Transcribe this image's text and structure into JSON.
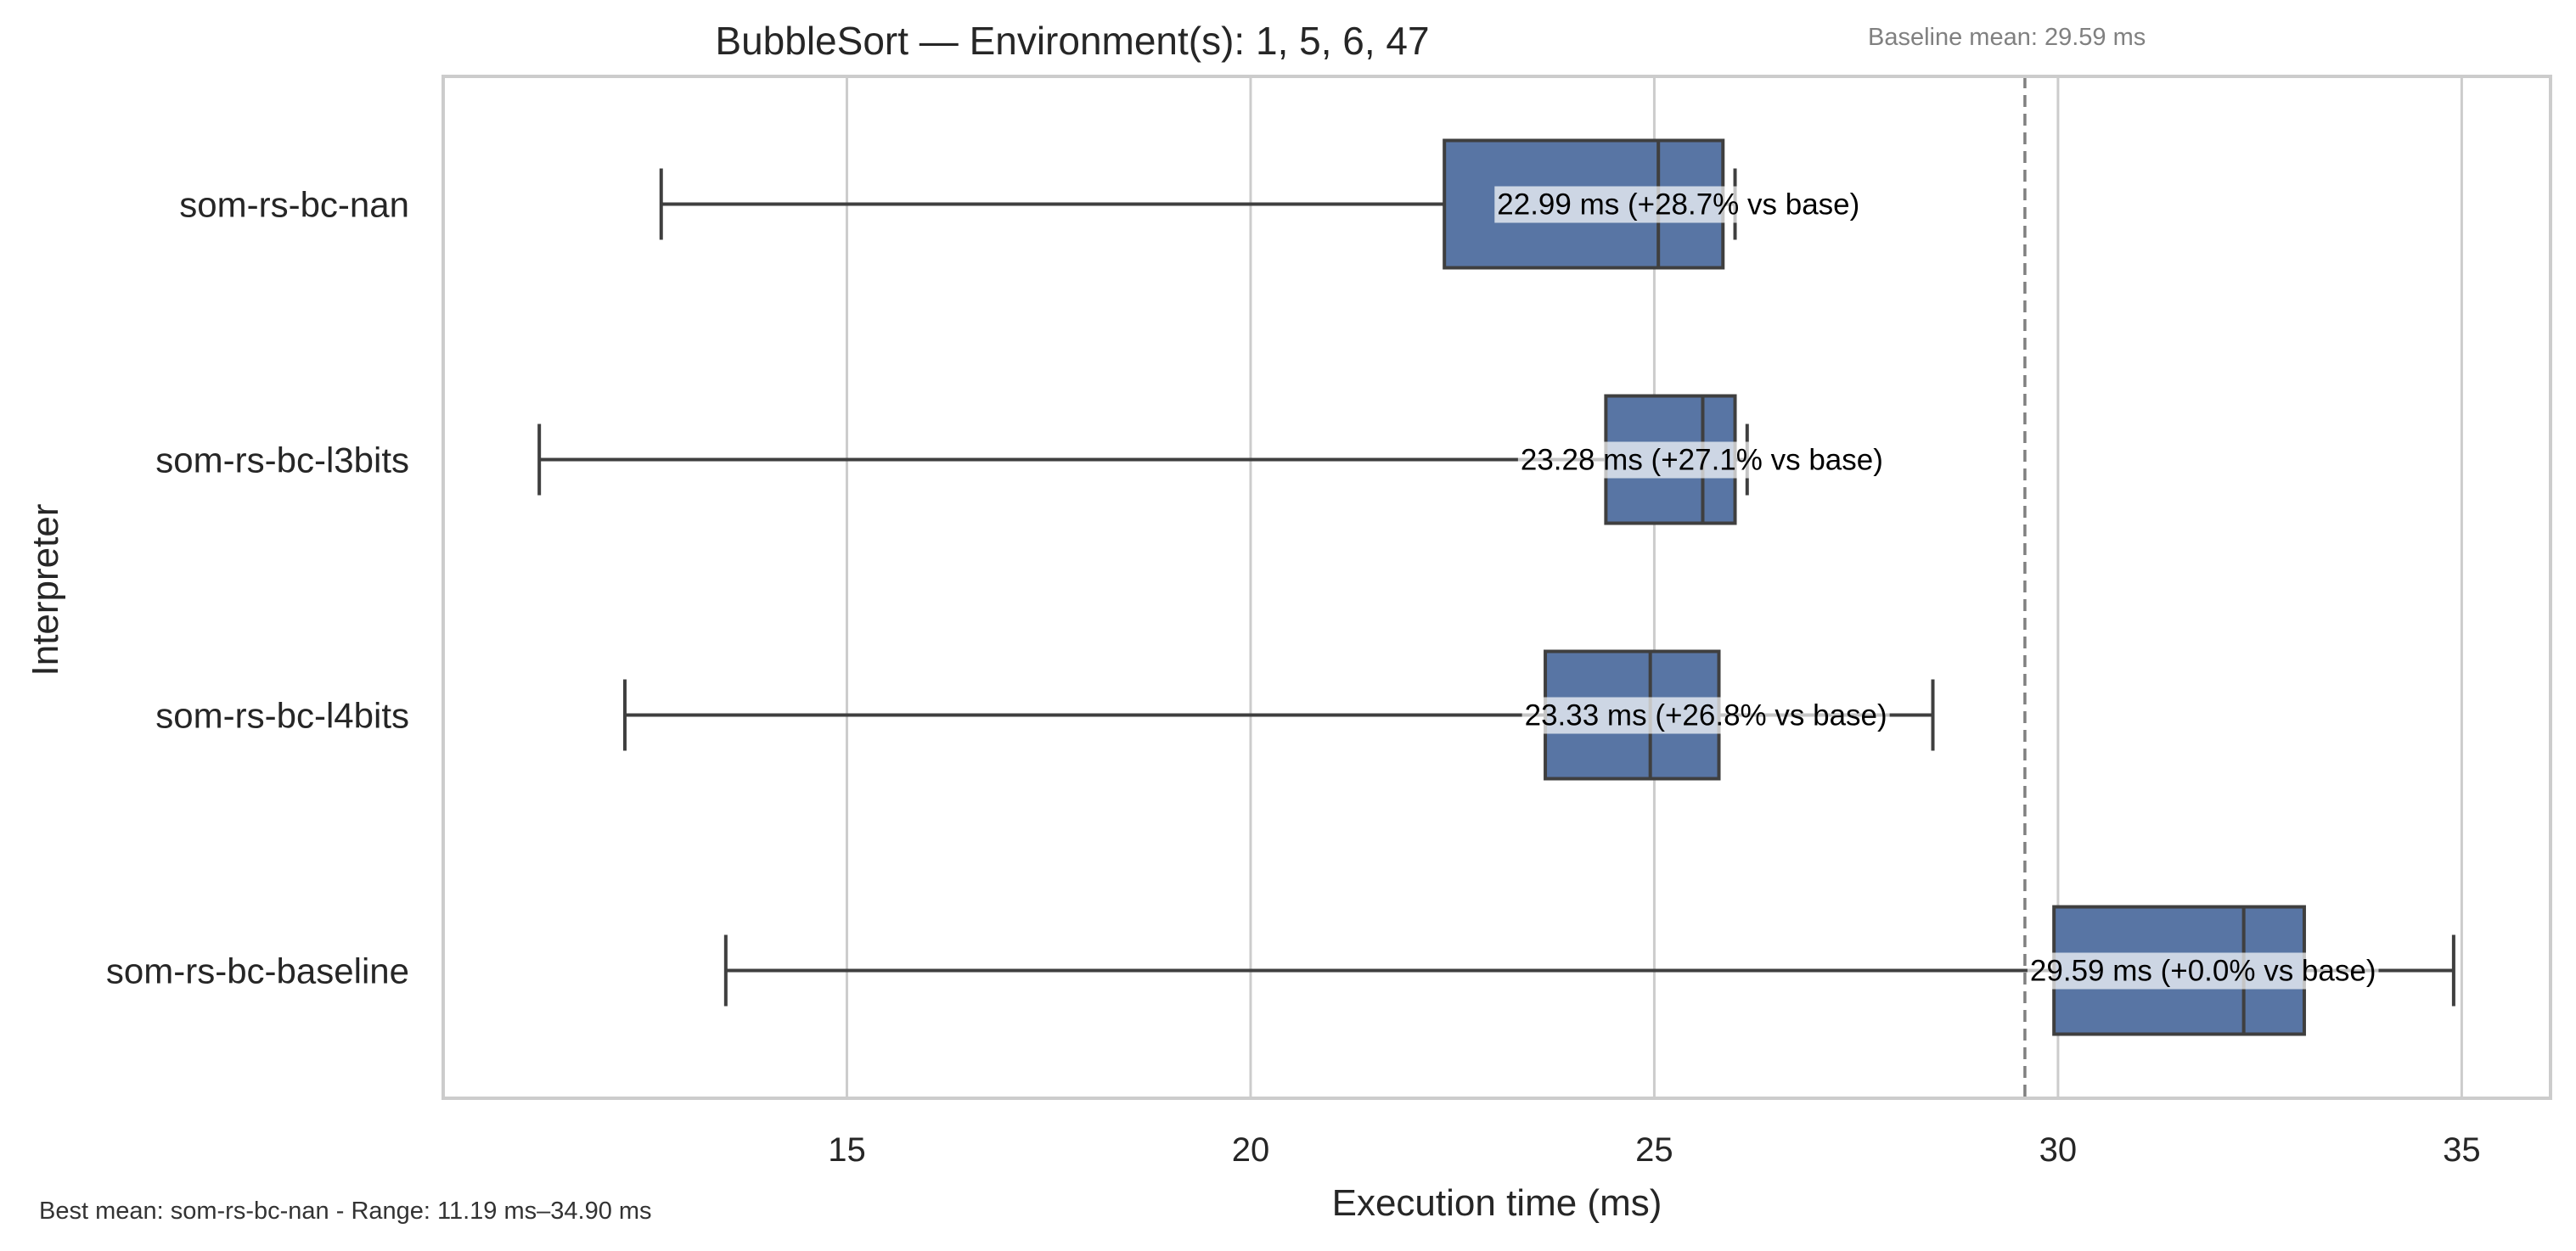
{
  "chart_data": {
    "type": "box",
    "orientation": "horizontal",
    "title": "BubbleSort — Environment(s): 1, 5, 6, 47",
    "xlabel": "Execution time (ms)",
    "ylabel": "Interpreter",
    "xlim": [
      10,
      36.1
    ],
    "xticks": [
      15,
      20,
      25,
      30,
      35
    ],
    "grid": true,
    "box_color": "#5875a4",
    "line_color": "#3f3f3f",
    "categories": [
      "som-rs-bc-nan",
      "som-rs-bc-l3bits",
      "som-rs-bc-l4bits",
      "som-rs-bc-baseline"
    ],
    "boxes": [
      {
        "name": "som-rs-bc-nan",
        "whisker_low": 12.7,
        "q1": 22.4,
        "median": 25.05,
        "q3": 25.85,
        "whisker_high": 26.0
      },
      {
        "name": "som-rs-bc-l3bits",
        "whisker_low": 11.19,
        "q1": 24.4,
        "median": 25.6,
        "q3": 26.0,
        "whisker_high": 26.15
      },
      {
        "name": "som-rs-bc-l4bits",
        "whisker_low": 12.25,
        "q1": 23.65,
        "median": 24.95,
        "q3": 25.8,
        "whisker_high": 28.45
      },
      {
        "name": "som-rs-bc-baseline",
        "whisker_low": 13.5,
        "q1": 29.95,
        "median": 32.3,
        "q3": 33.05,
        "whisker_high": 34.9
      }
    ],
    "annotations": [
      {
        "category": "som-rs-bc-nan",
        "mean": 22.99,
        "text": "22.99 ms  (+28.7% vs base)"
      },
      {
        "category": "som-rs-bc-l3bits",
        "mean": 23.28,
        "text": "23.28 ms  (+27.1% vs base)"
      },
      {
        "category": "som-rs-bc-l4bits",
        "mean": 23.33,
        "text": "23.33 ms  (+26.8% vs base)"
      },
      {
        "category": "som-rs-bc-baseline",
        "mean": 29.59,
        "text": "29.59 ms  (+0.0% vs base)"
      }
    ],
    "baseline": {
      "value": 29.59,
      "label": "Baseline mean: 29.59 ms"
    },
    "footnote": "Best mean: som-rs-bc-nan - Range: 11.19 ms–34.90 ms"
  }
}
